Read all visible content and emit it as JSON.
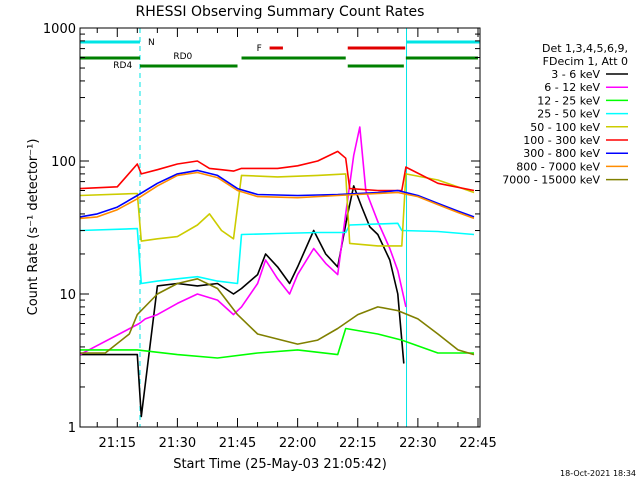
{
  "chart_data": {
    "type": "line",
    "title": "RHESSI Observing Summary Count Rates",
    "xlabel": "Start Time (25-May-03 21:05:42)",
    "ylabel": "Count Rate (s⁻¹ detector⁻¹)",
    "y_scale": "log",
    "ylim": [
      1,
      1000
    ],
    "xlim": [
      "21:05:42",
      "22:45:30"
    ],
    "x_ticks": [
      "21:15",
      "21:30",
      "21:45",
      "22:00",
      "22:15",
      "22:30",
      "22:45"
    ],
    "y_ticks": [
      "1",
      "10",
      "100",
      "1000"
    ],
    "legend": {
      "header_lines": [
        "Det 1,3,4,5,6,9,",
        "FDecim 1, Att 0"
      ],
      "placement": "right"
    },
    "timestamp": "18-Oct-2021 18:34",
    "flag_labels": {
      "n": "N",
      "f": "F",
      "rd0": "RD0",
      "rd4": "RD4"
    },
    "flag_colors": {
      "cyan": "#00e5e5",
      "red": "#e00000",
      "green": "#008000"
    },
    "night_intervals": [
      {
        "start": "21:05:42",
        "end": "21:20:40"
      },
      {
        "start": "22:27:10",
        "end": "22:45:30"
      }
    ],
    "flare_intervals": [
      {
        "start": "21:53:00",
        "end": "21:56:20"
      },
      {
        "start": "22:12:30",
        "end": "22:26:50"
      }
    ],
    "saa_intervals": [],
    "grid": false,
    "series": [
      {
        "name": "3 - 6 keV",
        "color": "#000000",
        "x": [
          "21:05:42",
          "21:20:00",
          "21:21:00",
          "21:25:00",
          "21:30:00",
          "21:35:00",
          "21:40:00",
          "21:44:00",
          "21:46:00",
          "21:50:00",
          "21:52:00",
          "21:55:00",
          "21:58:00",
          "22:00:00",
          "22:04:00",
          "22:07:00",
          "22:10:00",
          "22:12:30",
          "22:14:00",
          "22:16:00",
          "22:18:00",
          "22:20:00",
          "22:23:00",
          "22:25:00",
          "22:26:30"
        ],
        "y": [
          3.5,
          3.5,
          1.2,
          11.5,
          12,
          11.5,
          12,
          10,
          11,
          14,
          20,
          16,
          12,
          16,
          30,
          20,
          16,
          40,
          65,
          45,
          32,
          28,
          18,
          10,
          3
        ]
      },
      {
        "name": "6 - 12 keV",
        "color": "#ff00ff",
        "x": [
          "21:05:42",
          "21:20:30",
          "21:22:00",
          "21:25:00",
          "21:30:00",
          "21:35:00",
          "21:40:00",
          "21:44:00",
          "21:46:00",
          "21:50:00",
          "21:52:00",
          "21:55:00",
          "21:58:00",
          "22:00:00",
          "22:04:00",
          "22:07:00",
          "22:10:00",
          "22:12:00",
          "22:14:00",
          "22:15:30",
          "22:17:00",
          "22:20:00",
          "22:23:00",
          "22:25:00",
          "22:27:00"
        ],
        "y": [
          3.5,
          6,
          6.5,
          7,
          8.5,
          10,
          9,
          7,
          8,
          12,
          18,
          13,
          10,
          14,
          22,
          17,
          14,
          40,
          110,
          180,
          60,
          35,
          22,
          15,
          8
        ]
      },
      {
        "name": "12 - 25 keV",
        "color": "#00ff00",
        "x": [
          "21:05:42",
          "21:20:00",
          "21:30:00",
          "21:40:00",
          "21:50:00",
          "22:00:00",
          "22:10:00",
          "22:12:00",
          "22:20:00",
          "22:26:00",
          "22:35:00",
          "22:44:00"
        ],
        "y": [
          3.8,
          3.8,
          3.5,
          3.3,
          3.6,
          3.8,
          3.5,
          5.5,
          5,
          4.5,
          3.6,
          3.6
        ]
      },
      {
        "name": "25 - 50 keV",
        "color": "#00ffff",
        "x": [
          "21:05:42",
          "21:20:00",
          "21:21:00",
          "21:25:00",
          "21:30:00",
          "21:35:00",
          "21:40:00",
          "21:45:00",
          "21:46:00",
          "21:55:00",
          "22:05:00",
          "22:12:00",
          "22:13:00",
          "22:25:00",
          "22:26:00",
          "22:35:00",
          "22:44:00"
        ],
        "y": [
          30,
          31,
          12,
          12.5,
          13,
          13.5,
          12.5,
          12,
          28,
          28.5,
          29,
          29,
          33,
          34,
          30,
          29.5,
          28
        ]
      },
      {
        "name": "50 - 100 keV",
        "color": "#cccc00",
        "x": [
          "21:05:42",
          "21:20:00",
          "21:21:00",
          "21:25:00",
          "21:30:00",
          "21:35:00",
          "21:38:00",
          "21:41:00",
          "21:44:00",
          "21:45:00",
          "21:46:00",
          "21:55:00",
          "22:05:00",
          "22:12:00",
          "22:13:00",
          "22:20:00",
          "22:26:00",
          "22:27:00",
          "22:35:00",
          "22:44:00"
        ],
        "y": [
          55,
          57,
          25,
          26,
          27,
          33,
          40,
          30,
          26,
          45,
          78,
          76,
          78,
          80,
          24,
          23,
          23,
          80,
          72,
          58
        ]
      },
      {
        "name": "100 - 300 keV",
        "color": "#ff0000",
        "x": [
          "21:05:42",
          "21:15:00",
          "21:20:00",
          "21:21:00",
          "21:25:00",
          "21:30:00",
          "21:35:00",
          "21:38:00",
          "21:41:00",
          "21:44:00",
          "21:46:00",
          "21:55:00",
          "22:00:00",
          "22:05:00",
          "22:10:00",
          "22:12:00",
          "22:13:00",
          "22:20:00",
          "22:26:00",
          "22:27:00",
          "22:35:00",
          "22:44:00"
        ],
        "y": [
          62,
          64,
          95,
          80,
          86,
          95,
          100,
          88,
          86,
          84,
          88,
          88,
          92,
          100,
          118,
          105,
          62,
          60,
          60,
          90,
          68,
          60
        ]
      },
      {
        "name": "300 - 800 keV",
        "color": "#0000ff",
        "x": [
          "21:05:42",
          "21:10:00",
          "21:15:00",
          "21:20:00",
          "21:25:00",
          "21:30:00",
          "21:35:00",
          "21:40:00",
          "21:45:00",
          "21:50:00",
          "22:00:00",
          "22:10:00",
          "22:20:00",
          "22:25:00",
          "22:30:00",
          "22:35:00",
          "22:40:00",
          "22:44:00"
        ],
        "y": [
          38,
          40,
          45,
          55,
          68,
          80,
          85,
          78,
          62,
          56,
          55,
          56,
          58,
          60,
          55,
          48,
          42,
          38
        ]
      },
      {
        "name": "800 - 7000 keV",
        "color": "#ff8c00",
        "x": [
          "21:05:42",
          "21:10:00",
          "21:15:00",
          "21:20:00",
          "21:25:00",
          "21:30:00",
          "21:35:00",
          "21:40:00",
          "21:45:00",
          "21:50:00",
          "22:00:00",
          "22:10:00",
          "22:20:00",
          "22:25:00",
          "22:30:00",
          "22:35:00",
          "22:40:00",
          "22:44:00"
        ],
        "y": [
          37,
          38,
          43,
          52,
          65,
          78,
          82,
          75,
          60,
          54,
          53,
          55,
          57,
          58,
          54,
          47,
          41,
          37
        ]
      },
      {
        "name": "7000 - 15000 keV",
        "color": "#808000",
        "x": [
          "21:05:42",
          "21:12:00",
          "21:18:00",
          "21:20:00",
          "21:25:00",
          "21:30:00",
          "21:35:00",
          "21:40:00",
          "21:45:00",
          "21:50:00",
          "22:00:00",
          "22:05:00",
          "22:10:00",
          "22:15:00",
          "22:20:00",
          "22:25:00",
          "22:30:00",
          "22:35:00",
          "22:40:00",
          "22:44:00"
        ],
        "y": [
          3.6,
          3.6,
          5,
          7,
          10,
          12,
          13,
          11,
          7,
          5,
          4.2,
          4.5,
          5.5,
          7,
          8,
          7.5,
          6.5,
          5,
          3.8,
          3.5
        ]
      }
    ]
  }
}
